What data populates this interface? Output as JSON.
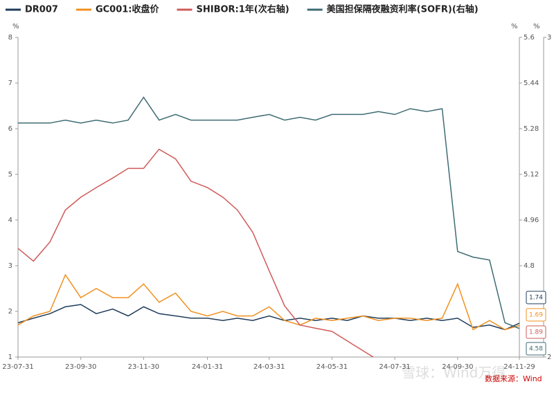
{
  "chart_data": {
    "type": "line",
    "x": [
      "23-07-31",
      "23-08-15",
      "23-08-31",
      "23-09-15",
      "23-09-30",
      "23-10-15",
      "23-10-31",
      "23-11-15",
      "23-11-30",
      "23-12-15",
      "23-12-31",
      "24-01-15",
      "24-01-31",
      "24-02-15",
      "24-02-29",
      "24-03-15",
      "24-03-31",
      "24-04-15",
      "24-04-30",
      "24-05-15",
      "24-05-31",
      "24-06-15",
      "24-06-30",
      "24-07-15",
      "24-07-31",
      "24-08-15",
      "24-08-31",
      "24-09-15",
      "24-09-30",
      "24-10-15",
      "24-10-31",
      "24-11-15",
      "24-11-29"
    ],
    "xticks": [
      "23-07-31",
      "23-09-30",
      "23-11-30",
      "24-01-31",
      "24-03-31",
      "24-05-31",
      "24-07-31",
      "24-09-30",
      "24-11-29"
    ],
    "series": [
      {
        "name": "DR007",
        "color": "#1f3b5a",
        "axis": "y",
        "values": [
          1.75,
          1.85,
          1.95,
          2.1,
          2.15,
          1.95,
          2.05,
          1.9,
          2.1,
          1.95,
          1.9,
          1.85,
          1.85,
          1.8,
          1.85,
          1.8,
          1.9,
          1.8,
          1.85,
          1.8,
          1.85,
          1.8,
          1.9,
          1.85,
          1.85,
          1.8,
          1.85,
          1.8,
          1.85,
          1.65,
          1.7,
          1.6,
          1.74
        ]
      },
      {
        "name": "GC001:收盘价",
        "color": "#f0901f",
        "axis": "y",
        "values": [
          1.7,
          1.9,
          2.0,
          2.8,
          2.3,
          2.5,
          2.3,
          2.3,
          2.6,
          2.2,
          2.4,
          2.0,
          1.9,
          2.0,
          1.9,
          1.9,
          2.1,
          1.8,
          1.7,
          1.85,
          1.8,
          1.85,
          1.9,
          1.8,
          1.85,
          1.85,
          1.8,
          1.85,
          2.6,
          1.6,
          1.8,
          1.6,
          1.69
        ]
      },
      {
        "name": "SHIBOR:1年(次右轴)",
        "color": "#d05a5a",
        "axis": "y3",
        "values": [
          2.34,
          2.3,
          2.36,
          2.46,
          2.5,
          2.53,
          2.56,
          2.59,
          2.59,
          2.65,
          2.62,
          2.55,
          2.53,
          2.5,
          2.46,
          2.39,
          2.27,
          2.16,
          2.1,
          2.09,
          2.08,
          2.05,
          2.02,
          1.99,
          null,
          null,
          null,
          null,
          null,
          null,
          null,
          null,
          1.89
        ]
      },
      {
        "name": "美国担保隔夜融资利率(SOFR)(右轴)",
        "color": "#3d6b73",
        "axis": "y2",
        "values": [
          5.3,
          5.3,
          5.3,
          5.31,
          5.3,
          5.31,
          5.3,
          5.31,
          5.39,
          5.31,
          5.33,
          5.31,
          5.31,
          5.31,
          5.31,
          5.32,
          5.33,
          5.31,
          5.32,
          5.31,
          5.33,
          5.33,
          5.33,
          5.34,
          5.33,
          5.35,
          5.34,
          5.35,
          4.85,
          4.83,
          4.82,
          4.6,
          4.58
        ]
      }
    ],
    "y_unit": "%",
    "y2_unit": "%",
    "y3_unit": "%",
    "ylim": [
      1,
      8
    ],
    "yticks": [
      1,
      2,
      3,
      4,
      5,
      6,
      7,
      8
    ],
    "y2lim": [
      4.48,
      5.6
    ],
    "y2ticks": [
      4.8,
      4.96,
      5.12,
      5.28,
      5.44,
      5.6
    ],
    "y3lim": [
      2,
      3
    ],
    "y3ticks": [
      2,
      3
    ],
    "watermark": "雪球：Wind万得",
    "source": "数据来源：Wind"
  }
}
